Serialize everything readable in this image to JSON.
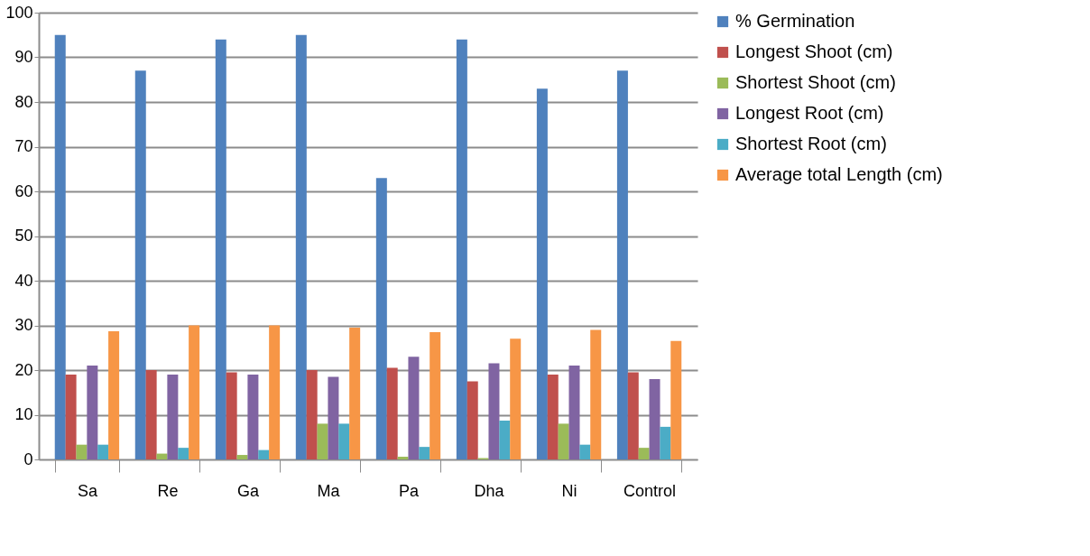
{
  "chart_data": {
    "type": "bar",
    "categories": [
      "Sa",
      "Re",
      "Ga",
      "Ma",
      "Pa",
      "Dha",
      "Ni",
      "Control"
    ],
    "series": [
      {
        "name": "% Germination",
        "color": "#4f81bd",
        "values": [
          95,
          87,
          94,
          95,
          63,
          94,
          83,
          87
        ]
      },
      {
        "name": "Longest Shoot (cm)",
        "color": "#c0504d",
        "values": [
          19,
          20,
          19.5,
          20,
          20.5,
          17.5,
          19,
          19.5
        ]
      },
      {
        "name": "Shortest Shoot (cm)",
        "color": "#9bbb59",
        "values": [
          3.3,
          1.3,
          1,
          8,
          0.6,
          0.3,
          8,
          2.6
        ]
      },
      {
        "name": "Longest Root (cm)",
        "color": "#8064a2",
        "values": [
          21,
          19,
          19,
          18.5,
          23,
          21.5,
          21,
          18
        ]
      },
      {
        "name": "Shortest Root (cm)",
        "color": "#4bacc6",
        "values": [
          3.3,
          2.6,
          2.1,
          8,
          2.8,
          8.7,
          3.3,
          7.3
        ]
      },
      {
        "name": "Average total Length (cm)",
        "color": "#f79646",
        "values": [
          28.7,
          30,
          30,
          29.5,
          28.5,
          27,
          29,
          26.5
        ]
      }
    ],
    "ylim": [
      0,
      100
    ],
    "yticks": [
      0,
      10,
      20,
      30,
      40,
      50,
      60,
      70,
      80,
      90,
      100
    ],
    "grid": "y",
    "legend": "right"
  }
}
